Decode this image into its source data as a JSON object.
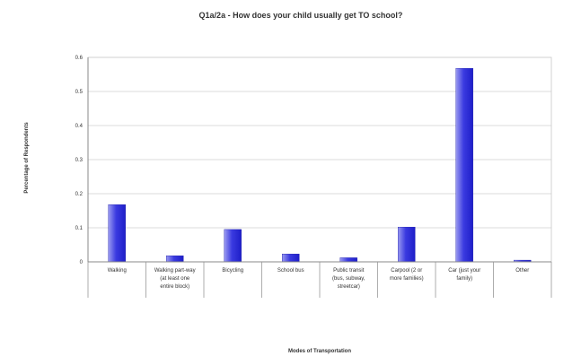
{
  "chart_data": {
    "type": "bar",
    "title": "Q1a/2a - How does your child usually get TO school?",
    "xlabel": "Modes of Transportation",
    "ylabel": "Percentage of Respondents",
    "ylim": [
      0,
      0.6
    ],
    "yticks": [
      "0",
      "0.1",
      "0.2",
      "0.3",
      "0.4",
      "0.5",
      "0.6"
    ],
    "categories": [
      [
        "Walking"
      ],
      [
        "Walking part-way",
        "(at least one",
        "entire block)"
      ],
      [
        "Bicycling"
      ],
      [
        "School bus"
      ],
      [
        "Public transit",
        "(bus, subway,",
        "streetcar)"
      ],
      [
        "Carpool (2 or",
        "more families)"
      ],
      [
        "Car (just your",
        "family)"
      ],
      [
        "Other"
      ]
    ],
    "values": [
      0.168,
      0.018,
      0.095,
      0.023,
      0.012,
      0.102,
      0.568,
      0.005
    ],
    "grid": true,
    "legend": "none",
    "bar_color": "#2b2bd6",
    "bar_highlight": "#9a9af0"
  }
}
